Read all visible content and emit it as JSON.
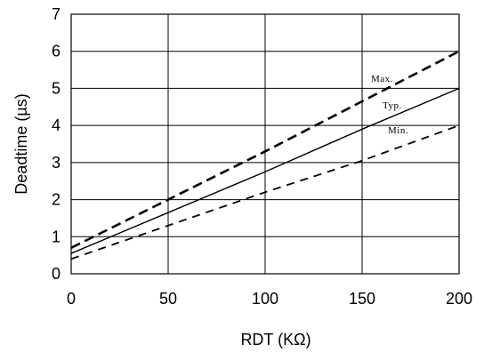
{
  "chart_data": {
    "type": "line",
    "title": "",
    "xlabel": "RDT (KΩ)",
    "ylabel": "Deadtime (µs)",
    "xlim": [
      0,
      200
    ],
    "ylim": [
      0,
      7
    ],
    "x_ticks": [
      0,
      50,
      100,
      150,
      200
    ],
    "y_ticks": [
      0,
      1,
      2,
      3,
      4,
      5,
      6,
      7
    ],
    "grid": true,
    "legend": "none",
    "series": [
      {
        "name": "Max.",
        "style": "dashed-thick",
        "x": [
          0,
          50,
          100,
          150,
          200
        ],
        "y": [
          0.7,
          2.0,
          3.3,
          4.65,
          6.0
        ]
      },
      {
        "name": "Typ.",
        "style": "solid",
        "x": [
          0,
          50,
          100,
          150,
          200
        ],
        "y": [
          0.55,
          1.65,
          2.75,
          3.9,
          5.0
        ]
      },
      {
        "name": "Min.",
        "style": "dashed",
        "x": [
          0,
          50,
          100,
          150,
          200
        ],
        "y": [
          0.4,
          1.3,
          2.2,
          3.05,
          4.0
        ]
      }
    ],
    "colors": {
      "line": "#000000",
      "grid": "#000000",
      "background": "#ffffff"
    }
  }
}
